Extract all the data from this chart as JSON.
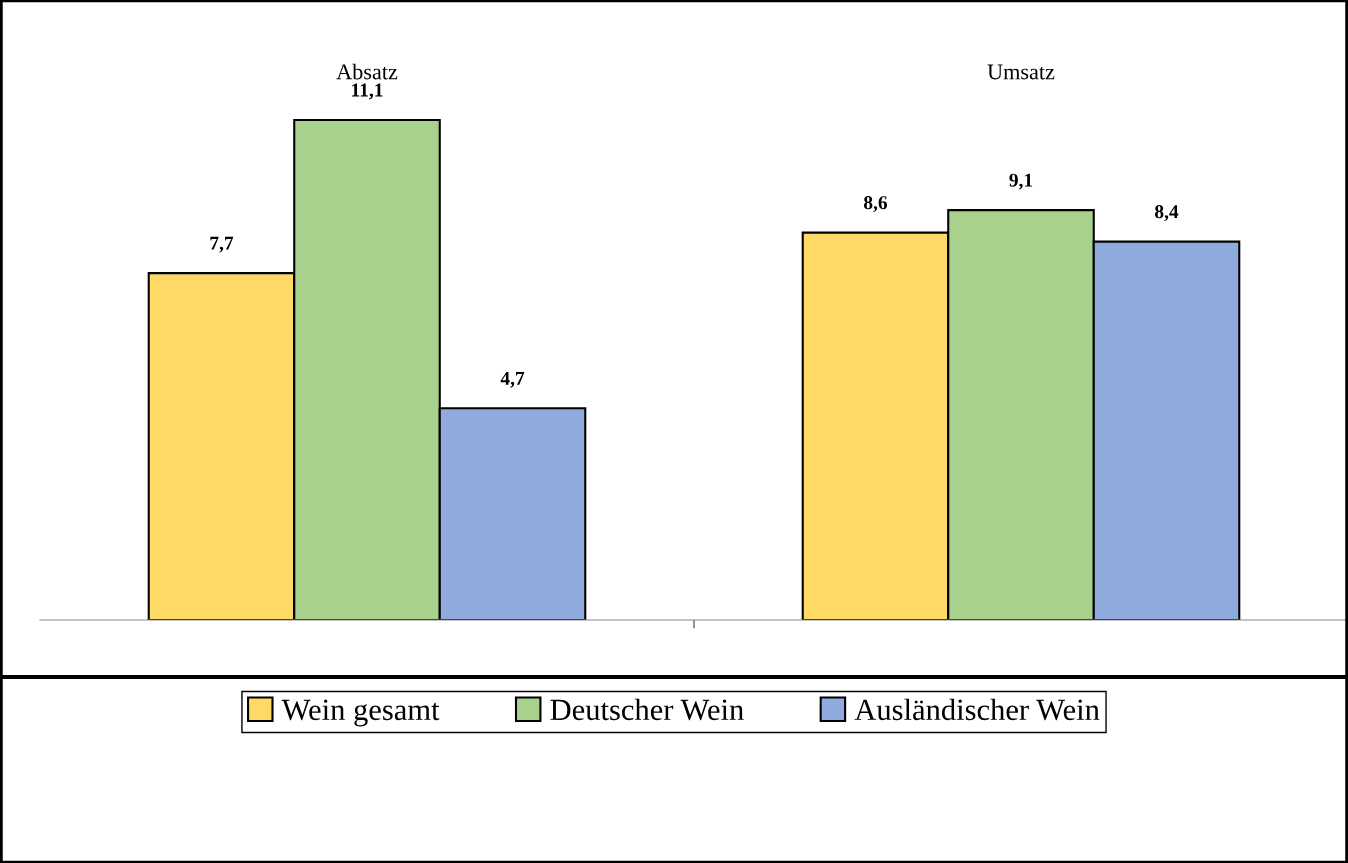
{
  "chart_data": {
    "type": "bar",
    "categories": [
      "Absatz",
      "Umsatz"
    ],
    "series": [
      {
        "name": "Wein gesamt",
        "color": "#ffd966",
        "values": [
          7.7,
          8.6
        ],
        "value_labels": [
          "7,7",
          "8,6"
        ]
      },
      {
        "name": "Deutscher Wein",
        "color": "#a9d18e",
        "values": [
          11.1,
          9.1
        ],
        "value_labels": [
          "11,1",
          "9,1"
        ]
      },
      {
        "name": "Ausländischer Wein",
        "color": "#8faadc",
        "values": [
          4.7,
          8.4
        ],
        "value_labels": [
          "4,7",
          "8,4"
        ]
      }
    ],
    "legend": "bottom",
    "grid": false
  }
}
